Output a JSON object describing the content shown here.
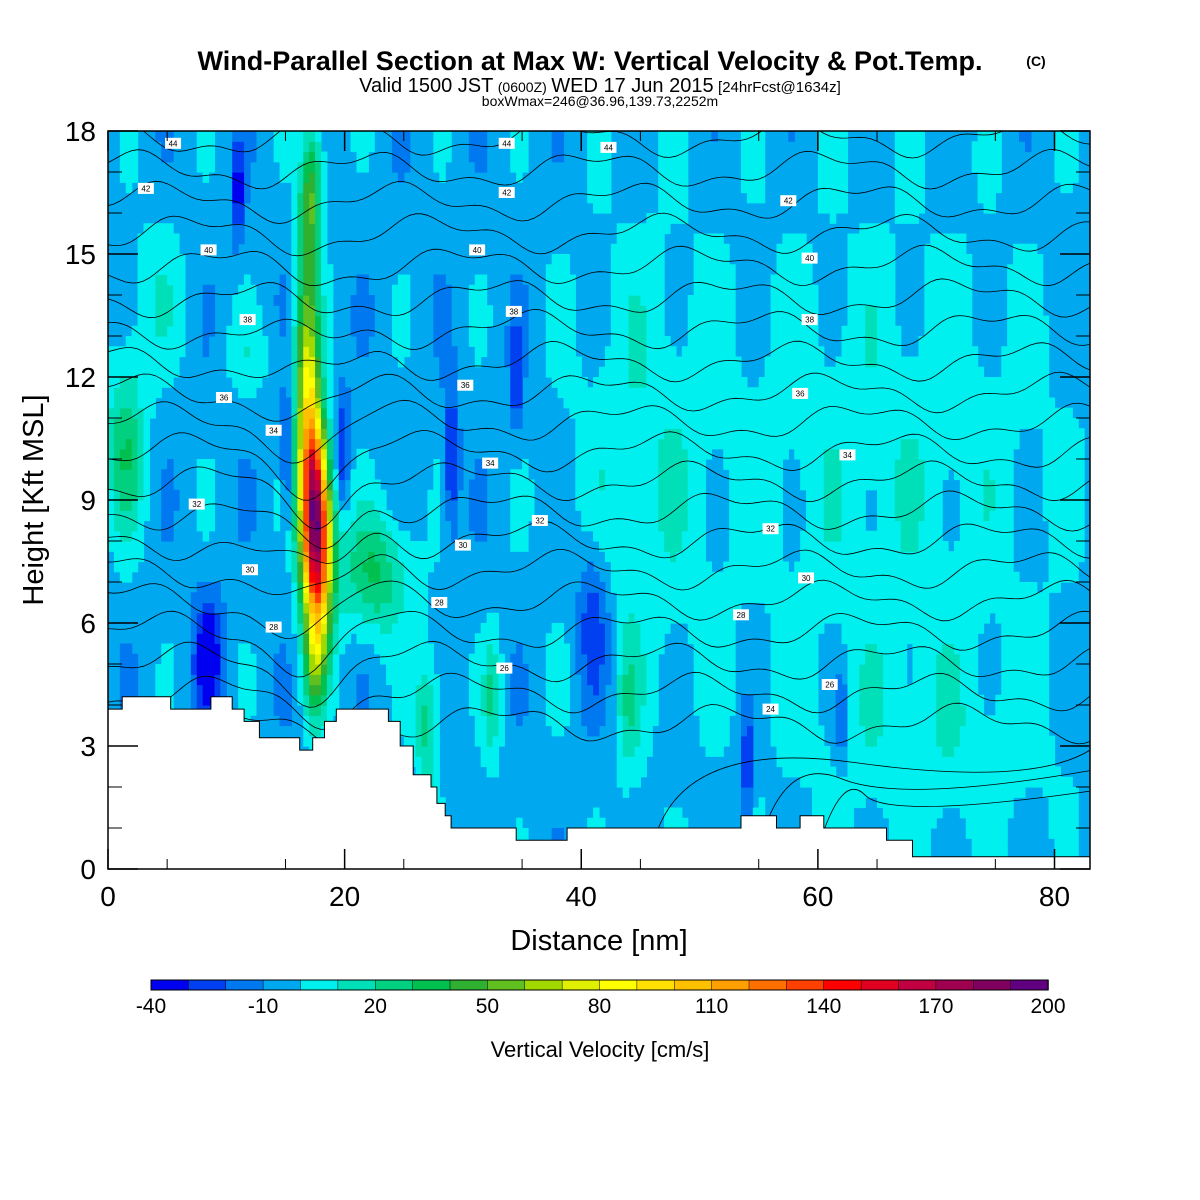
{
  "chart_data": {
    "type": "heatmap",
    "title": "Wind-Parallel Section at Max W: Vertical Velocity & Pot.Temp.",
    "title_mark": "(C)",
    "subtitle": {
      "valid_prefix": "Valid 1500 JST",
      "utc": "(0600Z)",
      "date": "WED 17 Jun 2015",
      "forecast": "[24hrFcst@1634z]"
    },
    "info_line": "boxWmax=246@36.96,139.73,2252m",
    "xlabel": "Distance [nm]",
    "ylabel": "Height [Kft MSL]",
    "xlim": [
      0,
      83
    ],
    "ylim": [
      0,
      18
    ],
    "x_ticks": [
      "0",
      "20",
      "40",
      "60",
      "80"
    ],
    "y_ticks": [
      "0",
      "3",
      "6",
      "9",
      "12",
      "15",
      "18"
    ],
    "colorbar": {
      "label": "Vertical Velocity [cm/s]",
      "min": -40,
      "max": 210,
      "step": 10,
      "tick_labels": [
        "-40",
        "-10",
        "20",
        "50",
        "80",
        "110",
        "140",
        "170",
        "200"
      ],
      "colors": [
        "#0000f0",
        "#0040f0",
        "#0078f0",
        "#00a8f0",
        "#00f0f0",
        "#00e0b8",
        "#00d080",
        "#00c050",
        "#30b030",
        "#60c020",
        "#a0d800",
        "#e0f000",
        "#ffff00",
        "#ffe000",
        "#ffc000",
        "#ffa000",
        "#ff7000",
        "#ff4000",
        "#ff0000",
        "#e00020",
        "#c00040",
        "#a00050",
        "#800060",
        "#600080"
      ]
    },
    "theta_contours": {
      "units": "C",
      "levels": [
        24,
        25,
        26,
        27,
        28,
        29,
        30,
        31,
        32,
        33,
        34,
        35,
        36,
        37,
        38,
        39,
        40,
        41,
        42,
        43,
        44
      ],
      "labels": [
        {
          "text": "44",
          "x": 5.5,
          "y": 17.7
        },
        {
          "text": "44",
          "x": 33.7,
          "y": 17.7
        },
        {
          "text": "44",
          "x": 42.3,
          "y": 17.6
        },
        {
          "text": "42",
          "x": 3.2,
          "y": 16.6
        },
        {
          "text": "42",
          "x": 33.7,
          "y": 16.5
        },
        {
          "text": "42",
          "x": 57.5,
          "y": 16.3
        },
        {
          "text": "40",
          "x": 8.5,
          "y": 15.1
        },
        {
          "text": "40",
          "x": 31.2,
          "y": 15.1
        },
        {
          "text": "40",
          "x": 59.3,
          "y": 14.9
        },
        {
          "text": "38",
          "x": 11.8,
          "y": 13.4
        },
        {
          "text": "38",
          "x": 34.3,
          "y": 13.6
        },
        {
          "text": "38",
          "x": 59.3,
          "y": 13.4
        },
        {
          "text": "36",
          "x": 9.8,
          "y": 11.5
        },
        {
          "text": "36",
          "x": 30.2,
          "y": 11.8
        },
        {
          "text": "36",
          "x": 58.5,
          "y": 11.6
        },
        {
          "text": "34",
          "x": 14.0,
          "y": 10.7
        },
        {
          "text": "34",
          "x": 32.3,
          "y": 9.9
        },
        {
          "text": "34",
          "x": 62.5,
          "y": 10.1
        },
        {
          "text": "32",
          "x": 7.5,
          "y": 8.9
        },
        {
          "text": "32",
          "x": 36.5,
          "y": 8.5
        },
        {
          "text": "32",
          "x": 56.0,
          "y": 8.3
        },
        {
          "text": "30",
          "x": 12.0,
          "y": 7.3
        },
        {
          "text": "30",
          "x": 30.0,
          "y": 7.9
        },
        {
          "text": "30",
          "x": 59.0,
          "y": 7.1
        },
        {
          "text": "28",
          "x": 14.0,
          "y": 5.9
        },
        {
          "text": "28",
          "x": 28.0,
          "y": 6.5
        },
        {
          "text": "28",
          "x": 53.5,
          "y": 6.2
        },
        {
          "text": "26",
          "x": 33.5,
          "y": 4.9
        },
        {
          "text": "26",
          "x": 61.0,
          "y": 4.5
        },
        {
          "text": "24",
          "x": 56.0,
          "y": 3.9
        }
      ]
    },
    "terrain": [
      [
        0,
        3.9
      ],
      [
        1.2,
        3.9
      ],
      [
        1.2,
        4.2
      ],
      [
        5.3,
        4.2
      ],
      [
        5.3,
        3.9
      ],
      [
        8.7,
        3.9
      ],
      [
        8.7,
        4.2
      ],
      [
        10.5,
        4.2
      ],
      [
        10.5,
        3.9
      ],
      [
        11.5,
        3.9
      ],
      [
        11.5,
        3.6
      ],
      [
        12.8,
        3.6
      ],
      [
        12.8,
        3.2
      ],
      [
        16.2,
        3.2
      ],
      [
        16.2,
        2.9
      ],
      [
        17.3,
        2.9
      ],
      [
        17.3,
        3.2
      ],
      [
        18.3,
        3.2
      ],
      [
        18.3,
        3.6
      ],
      [
        19.3,
        3.6
      ],
      [
        19.3,
        3.9
      ],
      [
        23.7,
        3.9
      ],
      [
        23.7,
        3.6
      ],
      [
        24.7,
        3.6
      ],
      [
        24.7,
        3.0
      ],
      [
        25.8,
        3.0
      ],
      [
        25.8,
        2.3
      ],
      [
        27.3,
        2.3
      ],
      [
        27.3,
        2.0
      ],
      [
        27.8,
        2.0
      ],
      [
        27.8,
        1.6
      ],
      [
        28.5,
        1.6
      ],
      [
        28.5,
        1.3
      ],
      [
        29.0,
        1.3
      ],
      [
        29.0,
        1.0
      ],
      [
        34.5,
        1.0
      ],
      [
        34.5,
        0.7
      ],
      [
        38.8,
        0.7
      ],
      [
        38.8,
        1.0
      ],
      [
        53.5,
        1.0
      ],
      [
        53.5,
        1.3
      ],
      [
        56.5,
        1.3
      ],
      [
        56.5,
        1.0
      ],
      [
        58.5,
        1.0
      ],
      [
        58.5,
        1.3
      ],
      [
        60.5,
        1.3
      ],
      [
        60.5,
        1.0
      ],
      [
        65.8,
        1.0
      ],
      [
        65.8,
        0.7
      ],
      [
        68.0,
        0.7
      ],
      [
        68.0,
        0.3
      ],
      [
        83,
        0.3
      ],
      [
        83,
        0
      ],
      [
        0,
        0
      ]
    ]
  }
}
